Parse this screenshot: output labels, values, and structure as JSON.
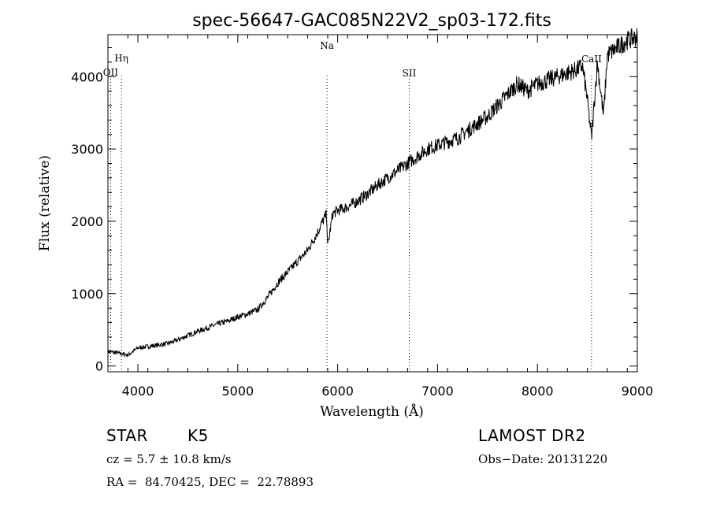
{
  "chart_data": {
    "type": "line",
    "title": "spec-56647-GAC085N22V2_sp03-172.fits",
    "xlabel": "Wavelength (Å)",
    "ylabel": "Flux (relative)",
    "xlim": [
      3700,
      9000
    ],
    "ylim": [
      -80,
      4580
    ],
    "xticks": [
      4000,
      5000,
      6000,
      7000,
      8000,
      9000
    ],
    "yticks": [
      0,
      1000,
      2000,
      3000,
      4000
    ],
    "grid": false,
    "line_color": "#000000",
    "series": [
      {
        "x": [
          3700,
          3800,
          3900,
          4000,
          4100,
          4200,
          4300,
          4400,
          4500,
          4600,
          4700,
          4800,
          4900,
          5000,
          5100,
          5200,
          5300,
          5400,
          5500,
          5600,
          5700,
          5800,
          5850,
          5890,
          5900,
          5950,
          6000,
          6100,
          6200,
          6300,
          6400,
          6500,
          6600,
          6700,
          6800,
          6900,
          7000,
          7100,
          7200,
          7300,
          7400,
          7500,
          7600,
          7700,
          7800,
          7900,
          8000,
          8100,
          8200,
          8300,
          8400,
          8450,
          8498,
          8542,
          8600,
          8662,
          8700,
          8800,
          8900,
          9000
        ],
        "y": [
          200,
          180,
          150,
          250,
          270,
          290,
          310,
          360,
          420,
          480,
          530,
          580,
          620,
          680,
          720,
          780,
          950,
          1150,
          1300,
          1450,
          1600,
          1850,
          2000,
          2100,
          1650,
          2100,
          2150,
          2200,
          2280,
          2380,
          2500,
          2600,
          2700,
          2800,
          2900,
          3000,
          3050,
          3100,
          3150,
          3250,
          3350,
          3450,
          3600,
          3750,
          3900,
          3800,
          3900,
          3950,
          4000,
          4050,
          4100,
          4150,
          3700,
          3150,
          4200,
          3450,
          4300,
          4400,
          4500,
          4550
        ]
      }
    ],
    "lines": [
      {
        "label": "Hη",
        "x": 3835
      },
      {
        "label": "OII",
        "x": 3727
      },
      {
        "label": "Na",
        "x": 5893
      },
      {
        "label": "SII",
        "x": 6717
      },
      {
        "label": "CaII",
        "x": 8542
      }
    ]
  },
  "info": {
    "object_type": "STAR",
    "subclass": "K5",
    "survey": "LAMOST DR2",
    "cz": "cz = 5.7 ± 10.8 km/s",
    "obs_date": "Obs−Date: 20131220",
    "coords": "RA =  84.70425, DEC =  22.78893"
  }
}
